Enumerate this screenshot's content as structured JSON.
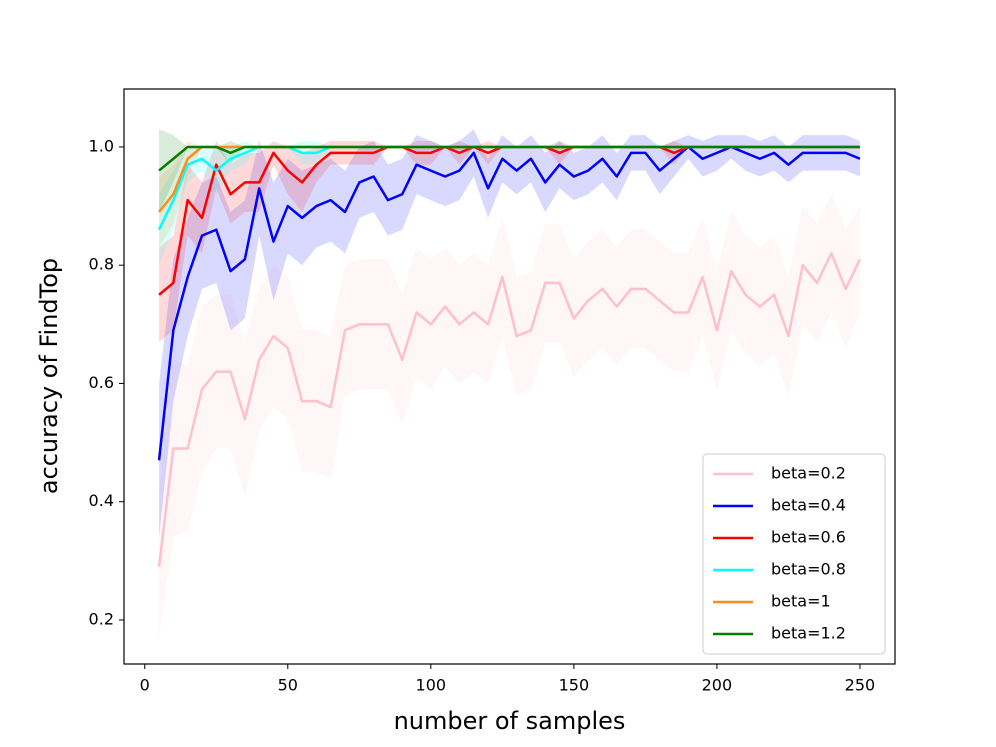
{
  "chart_data": {
    "type": "line",
    "xlabel": "number of samples",
    "ylabel": "accuracy of FindTop",
    "x": [
      5,
      10,
      15,
      20,
      25,
      30,
      35,
      40,
      45,
      50,
      55,
      60,
      65,
      70,
      75,
      80,
      85,
      90,
      95,
      100,
      105,
      110,
      115,
      120,
      125,
      130,
      135,
      140,
      145,
      150,
      155,
      160,
      165,
      170,
      175,
      180,
      185,
      190,
      195,
      200,
      205,
      210,
      215,
      220,
      225,
      230,
      235,
      240,
      245,
      250
    ],
    "xlim": [
      -7.25,
      262.25
    ],
    "xticks": [
      0,
      50,
      100,
      150,
      200,
      250
    ],
    "ylim": [
      0.1255,
      1.098
    ],
    "yticks": [
      0.2,
      0.4,
      0.6,
      0.8,
      {
        "value": 1,
        "label": "1.0"
      }
    ],
    "legend": "lower right",
    "series": [
      {
        "name": "beta=0.2",
        "color": "#ffc0cb",
        "values": [
          0.29,
          0.49,
          0.49,
          0.59,
          0.62,
          0.62,
          0.54,
          0.64,
          0.68,
          0.66,
          0.57,
          0.57,
          0.56,
          0.69,
          0.7,
          0.7,
          0.7,
          0.64,
          0.72,
          0.7,
          0.73,
          0.7,
          0.72,
          0.7,
          0.78,
          0.68,
          0.69,
          0.77,
          0.77,
          0.71,
          0.74,
          0.76,
          0.73,
          0.76,
          0.76,
          0.74,
          0.72,
          0.72,
          0.78,
          0.69,
          0.79,
          0.75,
          0.73,
          0.75,
          0.68,
          0.8,
          0.77,
          0.82,
          0.76,
          0.81
        ],
        "errors": [
          0.12,
          0.15,
          0.14,
          0.14,
          0.13,
          0.13,
          0.13,
          0.12,
          0.12,
          0.12,
          0.12,
          0.12,
          0.12,
          0.11,
          0.11,
          0.11,
          0.11,
          0.11,
          0.11,
          0.11,
          0.1,
          0.1,
          0.1,
          0.1,
          0.1,
          0.1,
          0.1,
          0.1,
          0.1,
          0.1,
          0.1,
          0.1,
          0.1,
          0.1,
          0.1,
          0.1,
          0.1,
          0.1,
          0.1,
          0.1,
          0.1,
          0.1,
          0.1,
          0.1,
          0.1,
          0.1,
          0.1,
          0.1,
          0.1,
          0.09
        ]
      },
      {
        "name": "beta=0.4",
        "color": "#0000ff",
        "values": [
          0.47,
          0.69,
          0.78,
          0.85,
          0.86,
          0.79,
          0.81,
          0.93,
          0.84,
          0.9,
          0.88,
          0.9,
          0.91,
          0.89,
          0.94,
          0.95,
          0.91,
          0.92,
          0.97,
          0.96,
          0.95,
          0.96,
          0.99,
          0.93,
          0.98,
          0.96,
          0.98,
          0.94,
          0.97,
          0.95,
          0.96,
          0.98,
          0.95,
          0.99,
          0.99,
          0.96,
          0.98,
          1.0,
          0.98,
          0.99,
          1.0,
          0.99,
          0.98,
          0.99,
          0.97,
          0.99,
          0.99,
          0.99,
          0.99,
          0.98
        ],
        "errors": [
          0.13,
          0.12,
          0.1,
          0.09,
          0.09,
          0.1,
          0.1,
          0.08,
          0.1,
          0.08,
          0.08,
          0.07,
          0.07,
          0.07,
          0.06,
          0.06,
          0.06,
          0.06,
          0.05,
          0.05,
          0.05,
          0.05,
          0.04,
          0.05,
          0.04,
          0.04,
          0.04,
          0.05,
          0.04,
          0.04,
          0.04,
          0.04,
          0.04,
          0.03,
          0.03,
          0.04,
          0.03,
          0.02,
          0.03,
          0.03,
          0.02,
          0.03,
          0.03,
          0.03,
          0.03,
          0.03,
          0.03,
          0.03,
          0.03,
          0.03
        ]
      },
      {
        "name": "beta=0.6",
        "color": "#ff0000",
        "values": [
          0.75,
          0.77,
          0.91,
          0.88,
          0.97,
          0.92,
          0.94,
          0.94,
          0.99,
          0.96,
          0.94,
          0.97,
          0.99,
          0.99,
          0.99,
          0.99,
          1.0,
          1.0,
          0.99,
          0.99,
          1.0,
          0.99,
          1.0,
          0.99,
          1.0,
          1.0,
          1.0,
          1.0,
          0.99,
          1.0,
          1.0,
          1.0,
          1.0,
          1.0,
          1.0,
          1.0,
          0.99,
          1.0,
          1.0,
          1.0,
          1.0,
          1.0,
          1.0,
          1.0,
          1.0,
          1.0,
          1.0,
          1.0,
          1.0,
          1.0
        ],
        "errors": [
          0.08,
          0.08,
          0.06,
          0.06,
          0.04,
          0.05,
          0.05,
          0.05,
          0.02,
          0.04,
          0.05,
          0.03,
          0.02,
          0.02,
          0.02,
          0.02,
          0.0,
          0.0,
          0.02,
          0.02,
          0.0,
          0.02,
          0.0,
          0.02,
          0.0,
          0.0,
          0.0,
          0.0,
          0.02,
          0.0,
          0.0,
          0.0,
          0.0,
          0.0,
          0.0,
          0.0,
          0.02,
          0.0,
          0.0,
          0.0,
          0.0,
          0.0,
          0.0,
          0.0,
          0.0,
          0.0,
          0.0,
          0.0,
          0.0,
          0.0
        ]
      },
      {
        "name": "beta=0.8",
        "color": "#00ffff",
        "values": [
          0.86,
          0.91,
          0.97,
          0.98,
          0.96,
          0.98,
          0.99,
          1.0,
          1.0,
          1.0,
          0.99,
          0.99,
          1.0,
          1.0,
          1.0,
          1.0,
          1.0,
          1.0,
          1.0,
          1.0,
          1.0,
          1.0,
          1.0,
          1.0,
          1.0,
          1.0,
          1.0,
          1.0,
          1.0,
          1.0,
          1.0,
          1.0,
          1.0,
          1.0,
          1.0,
          1.0,
          1.0,
          1.0,
          1.0,
          1.0,
          1.0,
          1.0,
          1.0,
          1.0,
          1.0,
          1.0,
          1.0,
          1.0,
          1.0,
          1.0
        ],
        "errors": [
          0.06,
          0.05,
          0.03,
          0.02,
          0.04,
          0.02,
          0.02,
          0.0,
          0.0,
          0.0,
          0.02,
          0.02,
          0.0,
          0.0,
          0.0,
          0.0,
          0.0,
          0.0,
          0.0,
          0.0,
          0.0,
          0.0,
          0.0,
          0.0,
          0.0,
          0.0,
          0.0,
          0.0,
          0.0,
          0.0,
          0.0,
          0.0,
          0.0,
          0.0,
          0.0,
          0.0,
          0.0,
          0.0,
          0.0,
          0.0,
          0.0,
          0.0,
          0.0,
          0.0,
          0.0,
          0.0,
          0.0,
          0.0,
          0.0,
          0.0
        ]
      },
      {
        "name": "beta=1",
        "color": "#ff8c1a",
        "values": [
          0.89,
          0.92,
          0.98,
          1.0,
          1.0,
          1.0,
          1.0,
          1.0,
          1.0,
          1.0,
          1.0,
          1.0,
          1.0,
          1.0,
          1.0,
          1.0,
          1.0,
          1.0,
          1.0,
          1.0,
          1.0,
          1.0,
          1.0,
          1.0,
          1.0,
          1.0,
          1.0,
          1.0,
          1.0,
          1.0,
          1.0,
          1.0,
          1.0,
          1.0,
          1.0,
          1.0,
          1.0,
          1.0,
          1.0,
          1.0,
          1.0,
          1.0,
          1.0,
          1.0,
          1.0,
          1.0,
          1.0,
          1.0,
          1.0,
          1.0
        ],
        "errors": [
          0.06,
          0.05,
          0.03,
          0.0,
          0.0,
          0.0,
          0.0,
          0.0,
          0.0,
          0.0,
          0.0,
          0.0,
          0.0,
          0.0,
          0.0,
          0.0,
          0.0,
          0.0,
          0.0,
          0.0,
          0.0,
          0.0,
          0.0,
          0.0,
          0.0,
          0.0,
          0.0,
          0.0,
          0.0,
          0.0,
          0.0,
          0.0,
          0.0,
          0.0,
          0.0,
          0.0,
          0.0,
          0.0,
          0.0,
          0.0,
          0.0,
          0.0,
          0.0,
          0.0,
          0.0,
          0.0,
          0.0,
          0.0,
          0.0,
          0.0
        ]
      },
      {
        "name": "beta=1.2",
        "color": "#007f00",
        "values": [
          0.96,
          0.98,
          1.0,
          1.0,
          1.0,
          0.99,
          1.0,
          1.0,
          1.0,
          1.0,
          1.0,
          1.0,
          1.0,
          1.0,
          1.0,
          1.0,
          1.0,
          1.0,
          1.0,
          1.0,
          1.0,
          1.0,
          1.0,
          1.0,
          1.0,
          1.0,
          1.0,
          1.0,
          1.0,
          1.0,
          1.0,
          1.0,
          1.0,
          1.0,
          1.0,
          1.0,
          1.0,
          1.0,
          1.0,
          1.0,
          1.0,
          1.0,
          1.0,
          1.0,
          1.0,
          1.0,
          1.0,
          1.0,
          1.0,
          1.0
        ],
        "errors": [
          0.07,
          0.04,
          0.0,
          0.0,
          0.0,
          0.02,
          0.0,
          0.0,
          0.0,
          0.0,
          0.0,
          0.0,
          0.0,
          0.0,
          0.0,
          0.0,
          0.0,
          0.0,
          0.0,
          0.0,
          0.0,
          0.0,
          0.0,
          0.0,
          0.0,
          0.0,
          0.0,
          0.0,
          0.0,
          0.0,
          0.0,
          0.0,
          0.0,
          0.0,
          0.0,
          0.0,
          0.0,
          0.0,
          0.0,
          0.0,
          0.0,
          0.0,
          0.0,
          0.0,
          0.0,
          0.0,
          0.0,
          0.0,
          0.0,
          0.0
        ]
      }
    ]
  }
}
